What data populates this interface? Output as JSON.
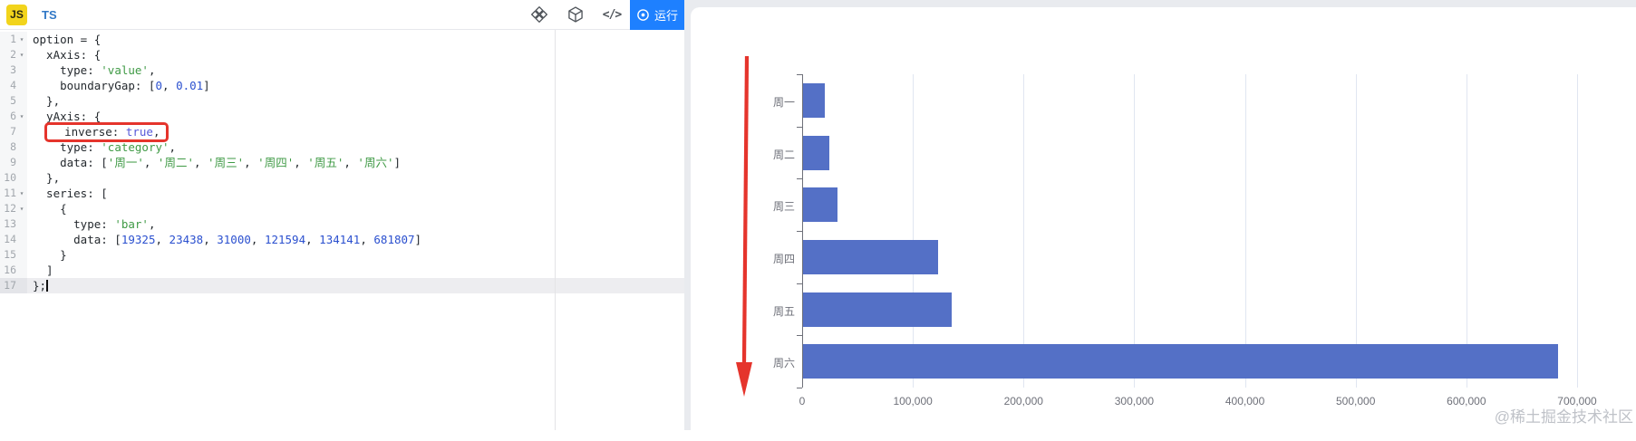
{
  "editor": {
    "tab_js": "JS",
    "tab_ts": "TS",
    "run_label": "运行",
    "icons": {
      "toolbar": [
        "codesandbox-icon",
        "cube-icon",
        "embed-code-icon"
      ],
      "embed_glyph": "</>",
      "run": "play-circle-icon"
    },
    "lines": [
      {
        "num": 1,
        "fold": true,
        "tokens": [
          [
            "d",
            "option = {"
          ]
        ]
      },
      {
        "num": 2,
        "fold": true,
        "tokens": [
          [
            "d",
            "  xAxis: {"
          ]
        ]
      },
      {
        "num": 3,
        "tokens": [
          [
            "d",
            "    type: "
          ],
          [
            "s",
            "'value'"
          ],
          [
            "d",
            ","
          ]
        ]
      },
      {
        "num": 4,
        "tokens": [
          [
            "d",
            "    boundaryGap: ["
          ],
          [
            "n",
            "0"
          ],
          [
            "d",
            ", "
          ],
          [
            "n",
            "0.01"
          ],
          [
            "d",
            "]"
          ]
        ]
      },
      {
        "num": 5,
        "tokens": [
          [
            "d",
            "  },"
          ]
        ]
      },
      {
        "num": 6,
        "fold": true,
        "tokens": [
          [
            "d",
            "  yAxis: {"
          ]
        ]
      },
      {
        "num": 7,
        "box": [
          1,
          3
        ],
        "tokens": [
          [
            "d",
            "  "
          ],
          [
            "d",
            "  inverse: "
          ],
          [
            "b",
            "true"
          ],
          [
            "d",
            ","
          ]
        ]
      },
      {
        "num": 8,
        "tokens": [
          [
            "d",
            "    type: "
          ],
          [
            "s",
            "'category'"
          ],
          [
            "d",
            ","
          ]
        ]
      },
      {
        "num": 9,
        "tokens": [
          [
            "d",
            "    data: ["
          ],
          [
            "s",
            "'周一'"
          ],
          [
            "d",
            ", "
          ],
          [
            "s",
            "'周二'"
          ],
          [
            "d",
            ", "
          ],
          [
            "s",
            "'周三'"
          ],
          [
            "d",
            ", "
          ],
          [
            "s",
            "'周四'"
          ],
          [
            "d",
            ", "
          ],
          [
            "s",
            "'周五'"
          ],
          [
            "d",
            ", "
          ],
          [
            "s",
            "'周六'"
          ],
          [
            "d",
            "]"
          ]
        ]
      },
      {
        "num": 10,
        "tokens": [
          [
            "d",
            "  },"
          ]
        ]
      },
      {
        "num": 11,
        "fold": true,
        "tokens": [
          [
            "d",
            "  series: ["
          ]
        ]
      },
      {
        "num": 12,
        "fold": true,
        "tokens": [
          [
            "d",
            "    {"
          ]
        ]
      },
      {
        "num": 13,
        "tokens": [
          [
            "d",
            "      type: "
          ],
          [
            "s",
            "'bar'"
          ],
          [
            "d",
            ","
          ]
        ]
      },
      {
        "num": 14,
        "tokens": [
          [
            "d",
            "      data: ["
          ],
          [
            "n",
            "19325"
          ],
          [
            "d",
            ", "
          ],
          [
            "n",
            "23438"
          ],
          [
            "d",
            ", "
          ],
          [
            "n",
            "31000"
          ],
          [
            "d",
            ", "
          ],
          [
            "n",
            "121594"
          ],
          [
            "d",
            ", "
          ],
          [
            "n",
            "134141"
          ],
          [
            "d",
            ", "
          ],
          [
            "n",
            "681807"
          ],
          [
            "d",
            "]"
          ]
        ]
      },
      {
        "num": 15,
        "tokens": [
          [
            "d",
            "    }"
          ]
        ]
      },
      {
        "num": 16,
        "tokens": [
          [
            "d",
            "  ]"
          ]
        ]
      },
      {
        "num": 17,
        "current": true,
        "tokens": [
          [
            "d",
            "};"
          ]
        ]
      }
    ]
  },
  "annotations": {
    "highlighted_code": "inverse: true,",
    "highlight_box_line": 7,
    "arrow_direction": "down",
    "red_color": "#e5342c"
  },
  "chart_data": {
    "type": "bar",
    "orientation": "horizontal",
    "categories": [
      "周一",
      "周二",
      "周三",
      "周四",
      "周五",
      "周六"
    ],
    "values": [
      19325,
      23438,
      31000,
      121594,
      134141,
      681807
    ],
    "y_axis": {
      "type": "category",
      "inverse": true
    },
    "x_axis": {
      "type": "value",
      "min": 0,
      "max": 700000,
      "tick_interval": 100000,
      "tick_labels": [
        "0",
        "100,000",
        "200,000",
        "300,000",
        "400,000",
        "500,000",
        "600,000",
        "700,000"
      ]
    },
    "grid": true,
    "legend": false,
    "title": "",
    "bar_color": "#5470c6"
  },
  "watermark": "@稀土掘金技术社区",
  "colors": {
    "run_button": "#1e80ff",
    "js_badge": "#f2d41c",
    "ts_label": "#3178c6",
    "bar": "#5470c6",
    "annotation_red": "#e5342c",
    "axis_label": "#6e7079",
    "gridline": "#e0e6f1"
  }
}
